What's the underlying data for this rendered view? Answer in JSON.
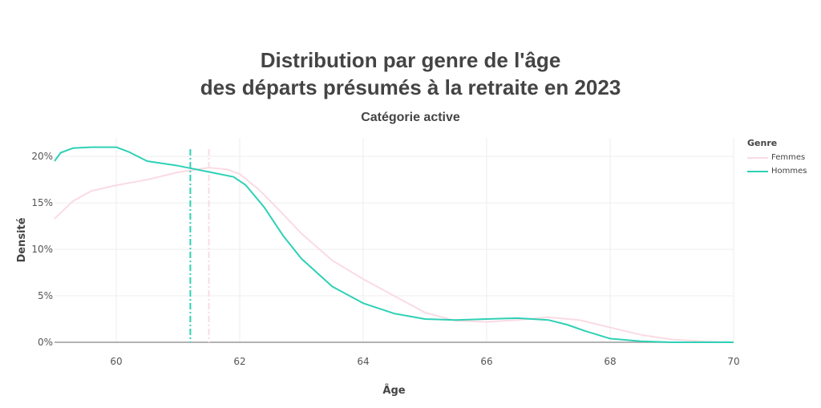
{
  "title_line1": "Distribution par genre de l'âge",
  "title_line2": "des départs présumés à la retraite en 2023",
  "subtitle": "Catégorie active",
  "legend": {
    "title": "Genre",
    "items": [
      {
        "name": "Femmes",
        "color": "#fadbe3"
      },
      {
        "name": "Hommes",
        "color": "#2ed1b5"
      }
    ]
  },
  "chart_data": {
    "type": "line",
    "xlabel": "Âge",
    "ylabel": "Densité",
    "xlim": [
      59,
      70
    ],
    "ylim": [
      0,
      0.22
    ],
    "xticks": [
      60,
      62,
      64,
      66,
      68,
      70
    ],
    "yticks": [
      0,
      0.05,
      0.1,
      0.15,
      0.2
    ],
    "ytick_labels": [
      "0%",
      "5%",
      "10%",
      "15%",
      "20%"
    ],
    "grid": true,
    "legend_position": "top-right",
    "series": [
      {
        "name": "Femmes",
        "color": "#fadbe3",
        "mean_line": 61.5,
        "x": [
          59.0,
          59.3,
          59.6,
          60.0,
          60.5,
          61.0,
          61.5,
          61.8,
          62.0,
          62.3,
          62.6,
          63.0,
          63.5,
          64.0,
          64.5,
          65.0,
          65.5,
          66.0,
          66.5,
          67.0,
          67.5,
          68.0,
          68.5,
          69.0,
          69.5,
          70.0
        ],
        "y": [
          0.133,
          0.152,
          0.163,
          0.169,
          0.175,
          0.183,
          0.188,
          0.186,
          0.181,
          0.165,
          0.145,
          0.117,
          0.088,
          0.068,
          0.05,
          0.032,
          0.023,
          0.022,
          0.024,
          0.027,
          0.024,
          0.016,
          0.008,
          0.003,
          0.001,
          0.0
        ]
      },
      {
        "name": "Hommes",
        "color": "#2ed1b5",
        "mean_line": 61.2,
        "x": [
          59.0,
          59.1,
          59.3,
          59.6,
          60.0,
          60.2,
          60.5,
          61.0,
          61.3,
          61.6,
          61.9,
          62.1,
          62.4,
          62.7,
          63.0,
          63.5,
          64.0,
          64.5,
          65.0,
          65.5,
          66.0,
          66.5,
          67.0,
          67.3,
          67.6,
          68.0,
          68.5,
          69.0,
          70.0
        ],
        "y": [
          0.195,
          0.204,
          0.209,
          0.21,
          0.21,
          0.205,
          0.195,
          0.19,
          0.186,
          0.182,
          0.178,
          0.169,
          0.145,
          0.115,
          0.09,
          0.06,
          0.042,
          0.031,
          0.025,
          0.024,
          0.025,
          0.026,
          0.024,
          0.019,
          0.012,
          0.004,
          0.001,
          0.0,
          0.0
        ]
      }
    ]
  }
}
